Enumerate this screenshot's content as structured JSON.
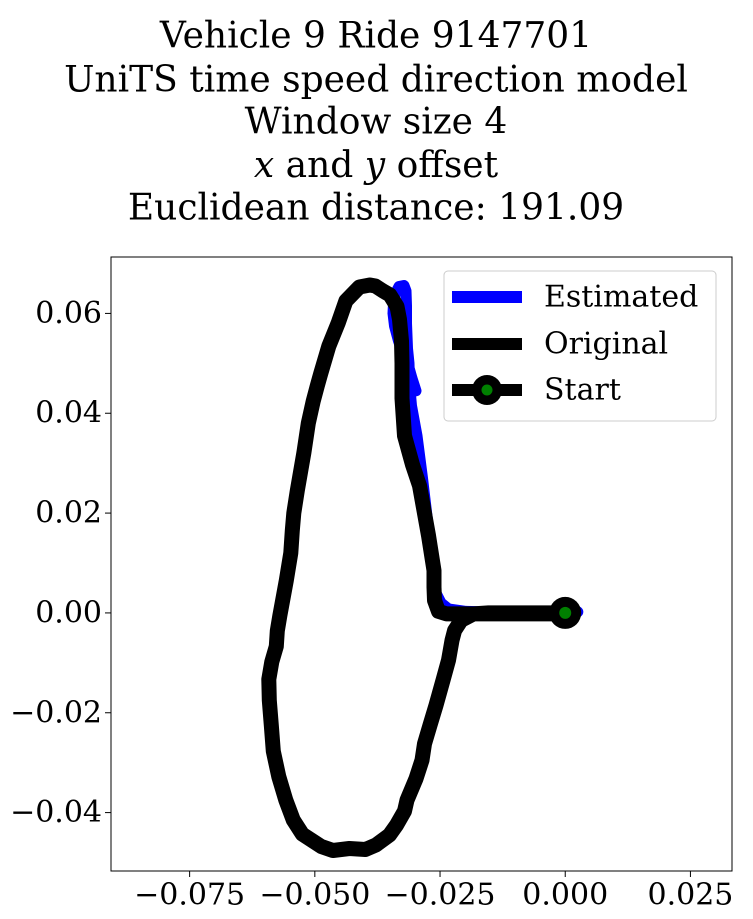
{
  "chart_data": {
    "type": "line",
    "title_lines": [
      "Vehicle 9 Ride 9147701",
      "UniTS time speed direction model",
      "Window size 4",
      "x and y offset",
      "Euclidean distance: 191.09"
    ],
    "xlabel": "",
    "ylabel": "",
    "xlim": [
      -0.0907,
      0.0333
    ],
    "ylim": [
      -0.0517,
      0.0713
    ],
    "x_ticks": [
      {
        "value": -0.075,
        "label": "−0.075"
      },
      {
        "value": -0.05,
        "label": "−0.050"
      },
      {
        "value": -0.025,
        "label": "−0.025"
      },
      {
        "value": 0.0,
        "label": "0.000"
      },
      {
        "value": 0.025,
        "label": "0.025"
      }
    ],
    "y_ticks": [
      {
        "value": 0.06,
        "label": "0.06"
      },
      {
        "value": 0.04,
        "label": "0.04"
      },
      {
        "value": 0.02,
        "label": "0.02"
      },
      {
        "value": 0.0,
        "label": "0.00"
      },
      {
        "value": -0.02,
        "label": "−0.02"
      },
      {
        "value": -0.04,
        "label": "−0.04"
      }
    ],
    "grid": false,
    "legend_position": "top-right",
    "series": [
      {
        "name": "Estimated",
        "color": "#0000ff",
        "x": [
          0.0025,
          0.0,
          -0.004,
          -0.0125,
          -0.0153,
          -0.0198,
          -0.0233,
          -0.0248,
          -0.0258,
          -0.0263,
          -0.0264,
          -0.0272,
          -0.0285,
          -0.0296,
          -0.0307,
          -0.0311,
          -0.0312,
          -0.0315,
          -0.0317,
          -0.0317,
          -0.0318,
          -0.0322,
          -0.0332,
          -0.0339,
          -0.0343,
          -0.0344,
          -0.0341,
          -0.0333,
          -0.0323,
          -0.0313,
          -0.0306,
          -0.0298
        ],
        "y": [
          0.0002,
          0.0002,
          0.0002,
          0.0002,
          0.0002,
          0.0003,
          0.0008,
          0.002,
          0.004,
          0.0065,
          0.0105,
          0.016,
          0.027,
          0.0355,
          0.0415,
          0.046,
          0.05,
          0.053,
          0.058,
          0.0615,
          0.0645,
          0.0656,
          0.0654,
          0.064,
          0.062,
          0.06,
          0.0575,
          0.0545,
          0.0515,
          0.0495,
          0.047,
          0.0445
        ]
      },
      {
        "name": "Original",
        "color": "#000000",
        "x": [
          0.0,
          -0.004,
          -0.0105,
          -0.0153,
          -0.0183,
          -0.0208,
          -0.0221,
          -0.0226,
          -0.0233,
          -0.0244,
          -0.0258,
          -0.027,
          -0.0281,
          -0.0286,
          -0.0298,
          -0.0316,
          -0.0321,
          -0.0337,
          -0.0351,
          -0.0378,
          -0.0399,
          -0.0431,
          -0.0464,
          -0.0487,
          -0.0525,
          -0.0543,
          -0.0558,
          -0.0572,
          -0.0583,
          -0.0587,
          -0.0591,
          -0.0592,
          -0.0586,
          -0.0577,
          -0.0575,
          -0.057,
          -0.0557,
          -0.0548,
          -0.0545,
          -0.0542,
          -0.0535,
          -0.0522,
          -0.0513,
          -0.0503,
          -0.0495,
          -0.0488,
          -0.0472,
          -0.0453,
          -0.0438,
          -0.0411,
          -0.039,
          -0.0379,
          -0.0364,
          -0.035,
          -0.0336,
          -0.0331,
          -0.0327,
          -0.0326,
          -0.0326,
          -0.0321,
          -0.0305,
          -0.0291,
          -0.0273,
          -0.0262,
          -0.0262,
          -0.0261,
          -0.0253,
          -0.0237,
          -0.0195,
          -0.0132,
          -0.0072,
          0.0
        ],
        "y": [
          0.0,
          0.0,
          0.0,
          0.0,
          -0.0002,
          -0.0015,
          -0.0035,
          -0.0055,
          -0.0095,
          -0.0135,
          -0.0185,
          -0.0225,
          -0.0262,
          -0.0295,
          -0.0332,
          -0.0375,
          -0.0397,
          -0.0425,
          -0.0445,
          -0.0465,
          -0.0474,
          -0.0472,
          -0.0476,
          -0.0468,
          -0.0443,
          -0.0415,
          -0.0375,
          -0.0328,
          -0.0277,
          -0.0225,
          -0.0175,
          -0.0133,
          -0.0098,
          -0.0067,
          -0.0036,
          -0.0006,
          0.0065,
          0.012,
          0.0165,
          0.02,
          0.0245,
          0.032,
          0.038,
          0.0425,
          0.0455,
          0.048,
          0.0535,
          0.0582,
          0.0625,
          0.0653,
          0.0657,
          0.0655,
          0.0645,
          0.0637,
          0.0614,
          0.0588,
          0.0545,
          0.05,
          0.043,
          0.0355,
          0.0297,
          0.0255,
          0.0155,
          0.0085,
          0.0052,
          0.0025,
          0.0003,
          -0.0002,
          -0.0002,
          -0.0002,
          -0.0002,
          -0.0002
        ]
      }
    ],
    "start_point": {
      "name": "Start",
      "x": 0.0,
      "y": 0.0,
      "line_color": "#000000",
      "marker_color": "#008000"
    }
  }
}
